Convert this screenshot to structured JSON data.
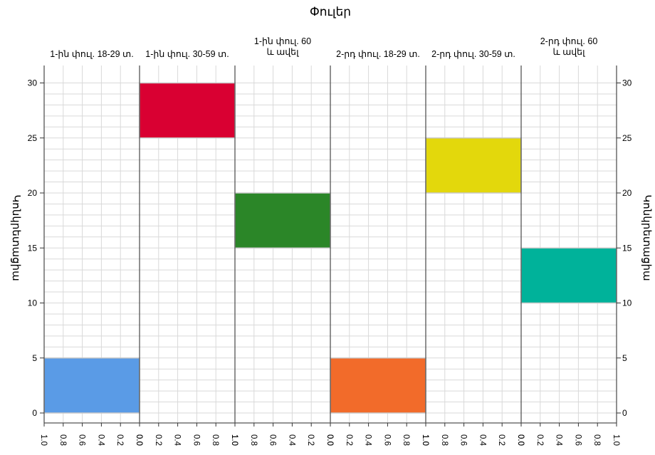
{
  "chart_data": {
    "type": "bar",
    "title": "Փուլեր",
    "ylabel": "Կոնկրետացիա",
    "ylim": [
      0,
      31
    ],
    "yticks": [
      0,
      5,
      10,
      15,
      20,
      25,
      30
    ],
    "grid": true,
    "panels": [
      {
        "label": "1-ին փուլ. 18-29 տ.",
        "direction": "left",
        "bar": {
          "start": 0,
          "end": 5,
          "width": 1.0
        },
        "color": "#5a9be6"
      },
      {
        "label": "1-ին փուլ. 30-59 տ.",
        "direction": "right",
        "bar": {
          "start": 25,
          "end": 30,
          "width": 1.0
        },
        "color": "#d90032"
      },
      {
        "label": "1-ին փուլ. 60 և ավել",
        "direction": "left",
        "bar": {
          "start": 15,
          "end": 20,
          "width": 1.0
        },
        "color": "#2b8628"
      },
      {
        "label": "2-րդ փուլ. 18-29 տ.",
        "direction": "right",
        "bar": {
          "start": 0,
          "end": 5,
          "width": 1.0
        },
        "color": "#f26b2a"
      },
      {
        "label": "2-րդ փուլ. 30-59 տ.",
        "direction": "left",
        "bar": {
          "start": 20,
          "end": 25,
          "width": 1.0
        },
        "color": "#e3d80c"
      },
      {
        "label": "2-րդ փուլ. 60 և ավել",
        "direction": "right",
        "bar": {
          "start": 10,
          "end": 15,
          "width": 1.0
        },
        "color": "#00b29a"
      }
    ],
    "xticks_left": [
      "1.0",
      "0.8",
      "0.6",
      "0.4",
      "0.2",
      "0.0"
    ],
    "xticks_right": [
      "0.0",
      "0.2",
      "0.4",
      "0.6",
      "0.8",
      "1.0"
    ]
  }
}
